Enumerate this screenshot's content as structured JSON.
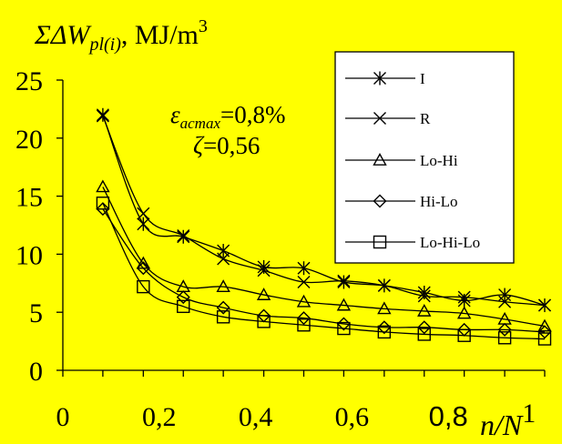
{
  "chart_data": {
    "type": "line",
    "title": {
      "prefix": "ΣΔW",
      "subscript": "pl(i)",
      "suffix": ", MJ/m",
      "superscript": "3"
    },
    "xlabel": {
      "main": "n/N",
      "superscript": "1"
    },
    "ylabel": "",
    "xlim": [
      0,
      1
    ],
    "ylim": [
      0,
      25
    ],
    "xticks": [
      0,
      0.2,
      0.4,
      0.6,
      0.8,
      1
    ],
    "xtick_labels": [
      "0",
      "0,2",
      "0,4",
      "0,6",
      "0,8",
      ""
    ],
    "yticks": [
      0,
      5,
      10,
      15,
      20,
      25
    ],
    "ytick_labels": [
      "0",
      "5",
      "10",
      "15",
      "20",
      "25"
    ],
    "grid": false,
    "legend_position": "top-right",
    "annotations": {
      "strain_symbol": "ε",
      "strain_subscript": "acmax",
      "strain_value": "=0,8%",
      "zeta_symbol": "ζ",
      "zeta_value": "=0,56"
    },
    "x": [
      0.083,
      0.167,
      0.25,
      0.333,
      0.417,
      0.5,
      0.583,
      0.667,
      0.75,
      0.833,
      0.917,
      1.0
    ],
    "series": [
      {
        "name": "I",
        "marker": "asterisk",
        "values": [
          22.0,
          12.6,
          11.5,
          10.3,
          8.9,
          8.8,
          7.6,
          7.3,
          6.7,
          6.0,
          6.5,
          5.6
        ]
      },
      {
        "name": "R",
        "marker": "x",
        "values": [
          21.9,
          13.5,
          11.6,
          9.6,
          8.6,
          7.6,
          7.7,
          7.3,
          6.4,
          6.3,
          5.9,
          5.6
        ]
      },
      {
        "name": "Lo-Hi",
        "marker": "triangle",
        "values": [
          15.8,
          9.2,
          7.2,
          7.2,
          6.5,
          5.9,
          5.6,
          5.3,
          5.1,
          4.9,
          4.4,
          3.8
        ]
      },
      {
        "name": "Hi-Lo",
        "marker": "diamond",
        "values": [
          13.9,
          8.8,
          6.3,
          5.4,
          4.7,
          4.5,
          4.0,
          3.7,
          3.7,
          3.5,
          3.5,
          3.3
        ]
      },
      {
        "name": "Lo-Hi-Lo",
        "marker": "square",
        "values": [
          14.4,
          7.2,
          5.5,
          4.6,
          4.2,
          3.9,
          3.6,
          3.3,
          3.1,
          3.0,
          2.8,
          2.7
        ]
      }
    ],
    "colors": {
      "background": "#ffff00",
      "line": "#000000"
    }
  }
}
